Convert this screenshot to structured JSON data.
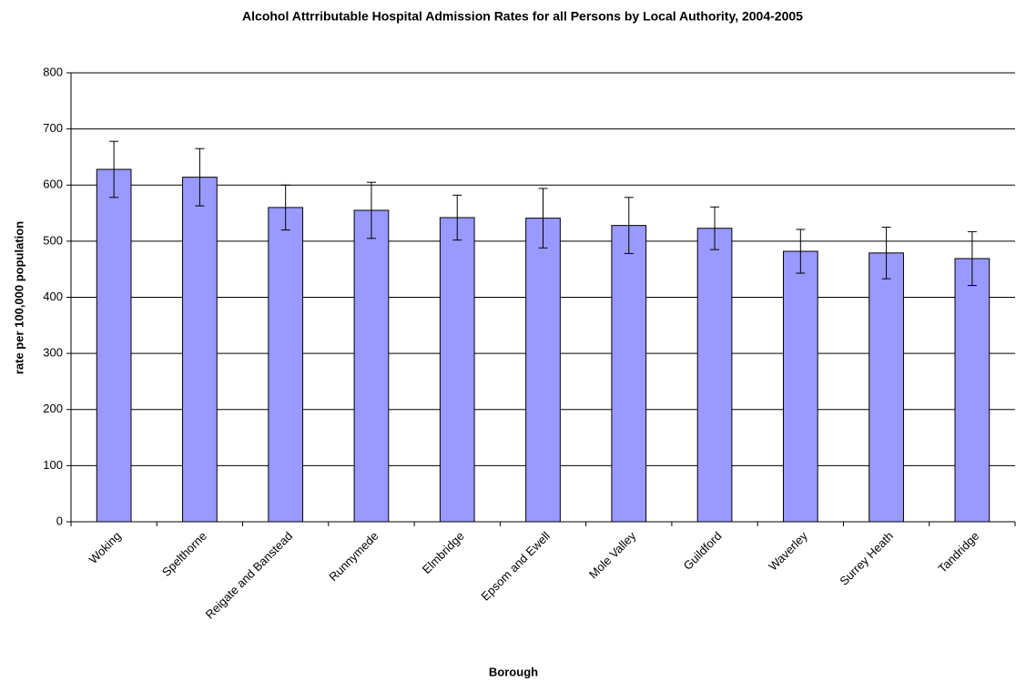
{
  "chart_data": {
    "type": "bar",
    "title": "Alcohol Attrributable Hospital Admission Rates for all Persons by Local Authority, 2004-2005",
    "x_label": "Borough",
    "y_label": "rate per 100,000 population",
    "categories": [
      "Woking",
      "Spelthorne",
      "Reigate and Banstead",
      "Runnymede",
      "Elmbridge",
      "Epsom and Ewell",
      "Mole Valley",
      "Guildford",
      "Waverley",
      "Surrey Heath",
      "Tandridge"
    ],
    "values": [
      628,
      614,
      560,
      555,
      542,
      541,
      528,
      523,
      482,
      479,
      469
    ],
    "errors": [
      50,
      51,
      40,
      50,
      40,
      53,
      50,
      38,
      39,
      46,
      48
    ],
    "color": "#9999ff",
    "ylim": [
      0,
      800
    ],
    "yticks": [
      0,
      100,
      200,
      300,
      400,
      500,
      600,
      700,
      800
    ],
    "grid": true
  }
}
